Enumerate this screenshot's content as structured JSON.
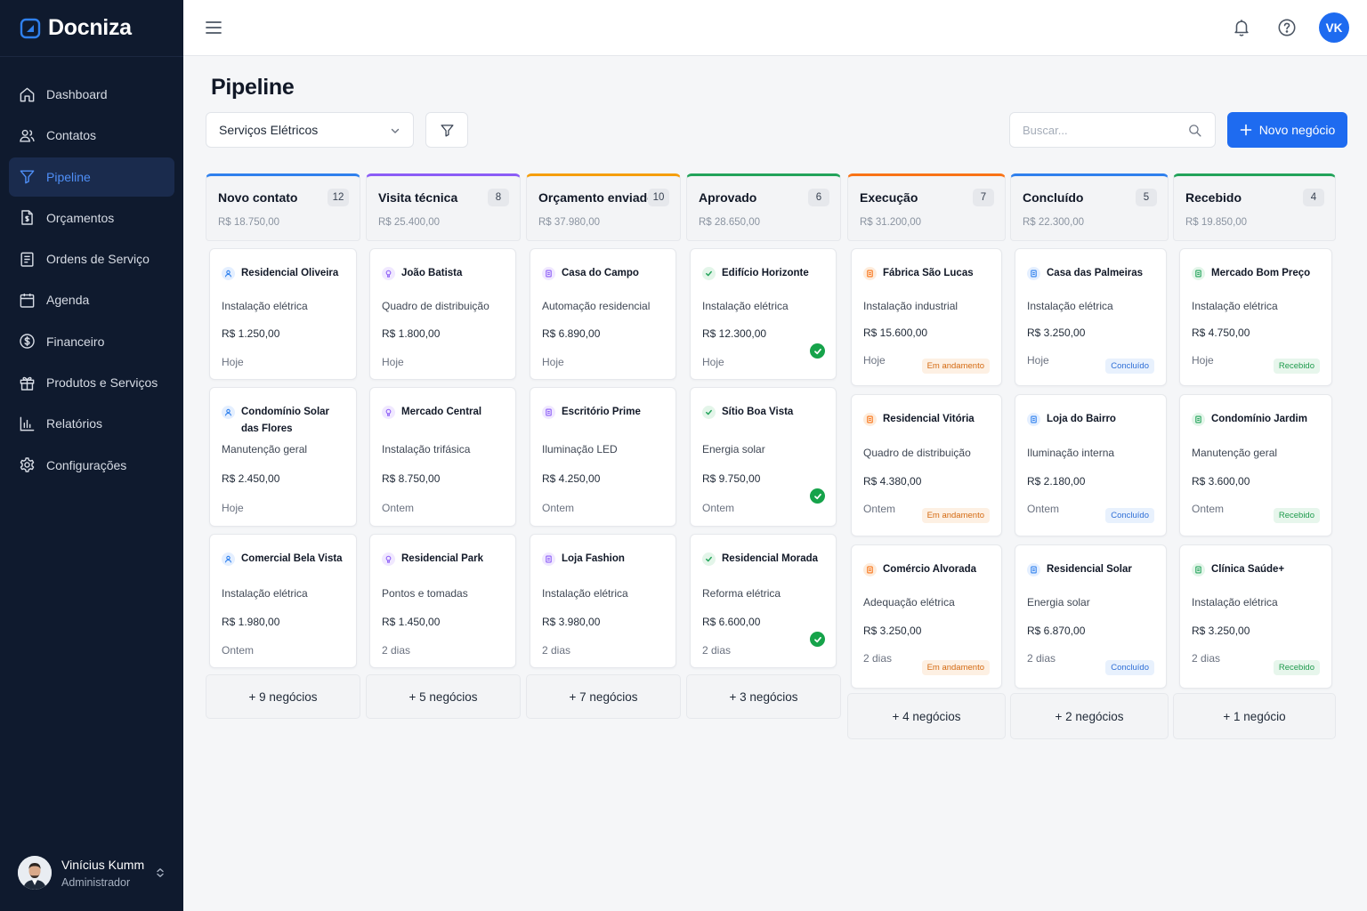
{
  "brand": {
    "name": "Docniza"
  },
  "sidebar": {
    "items": [
      {
        "label": "Dashboard",
        "icon": "home-icon"
      },
      {
        "label": "Contatos",
        "icon": "users-icon"
      },
      {
        "label": "Pipeline",
        "icon": "funnel-icon",
        "active": true
      },
      {
        "label": "Orçamentos",
        "icon": "document-icon"
      },
      {
        "label": "Ordens de Serviço",
        "icon": "clipboard-icon"
      },
      {
        "label": "Agenda",
        "icon": "calendar-icon"
      },
      {
        "label": "Financeiro",
        "icon": "dollar-icon"
      },
      {
        "label": "Produtos e Serviços",
        "icon": "box-icon"
      },
      {
        "label": "Relatórios",
        "icon": "bar-chart-icon"
      },
      {
        "label": "Configurações",
        "icon": "gear-icon"
      }
    ],
    "user": {
      "name": "Vinícius Kumm",
      "role": "Administrador"
    }
  },
  "topbar": {
    "avatar_initials": "VK"
  },
  "page": {
    "title": "Pipeline",
    "pipeline_select": "Serviços Elétricos",
    "search_placeholder": "Buscar...",
    "new_button": "Novo negócio"
  },
  "colors": {
    "accent": "#1e6bf0",
    "sidebar_bg": "#0f1a2e",
    "columns": [
      "#2f80ed",
      "#8b5cf6",
      "#f59e0b",
      "#22a35a",
      "#f97316",
      "#2f80ed",
      "#22a35a"
    ]
  },
  "columns": [
    {
      "title": "Novo contato",
      "count": "12",
      "total": "R$ 18.750,00",
      "more": "+ 9 negócios",
      "cards": [
        {
          "client": "Residencial Oliveira",
          "service": "Instalação elétrica",
          "value": "R$ 1.250,00",
          "date": "Hoje"
        },
        {
          "client": "Condomínio Solar das Flores",
          "service": "Manutenção geral",
          "value": "R$ 2.450,00",
          "date": "Hoje"
        },
        {
          "client": "Comercial Bela Vista",
          "service": "Instalação elétrica",
          "value": "R$ 1.980,00",
          "date": "Ontem"
        }
      ]
    },
    {
      "title": "Visita técnica",
      "count": "8",
      "total": "R$ 25.400,00",
      "more": "+ 5 negócios",
      "cards": [
        {
          "client": "João Batista",
          "service": "Quadro de distribuição",
          "value": "R$ 1.800,00",
          "date": "Hoje"
        },
        {
          "client": "Mercado Central",
          "service": "Instalação trifásica",
          "value": "R$ 8.750,00",
          "date": "Ontem"
        },
        {
          "client": "Residencial Park",
          "service": "Pontos e tomadas",
          "value": "R$ 1.450,00",
          "date": "2 dias"
        }
      ]
    },
    {
      "title": "Orçamento enviado",
      "count": "10",
      "total": "R$ 37.980,00",
      "more": "+ 7 negócios",
      "cards": [
        {
          "client": "Casa do Campo",
          "service": "Automação residencial",
          "value": "R$ 6.890,00",
          "date": "Hoje"
        },
        {
          "client": "Escritório Prime",
          "service": "Iluminação LED",
          "value": "R$ 4.250,00",
          "date": "Ontem"
        },
        {
          "client": "Loja Fashion",
          "service": "Instalação elétrica",
          "value": "R$ 3.980,00",
          "date": "2 dias"
        }
      ]
    },
    {
      "title": "Aprovado",
      "count": "6",
      "total": "R$ 28.650,00",
      "more": "+ 3 negócios",
      "cards": [
        {
          "client": "Edifício Horizonte",
          "service": "Instalação elétrica",
          "value": "R$ 12.300,00",
          "date": "Hoje"
        },
        {
          "client": "Sítio Boa Vista",
          "service": "Energia solar",
          "value": "R$ 9.750,00",
          "date": "Ontem"
        },
        {
          "client": "Residencial Morada",
          "service": "Reforma elétrica",
          "value": "R$ 6.600,00",
          "date": "2 dias"
        }
      ]
    },
    {
      "title": "Execução",
      "count": "7",
      "total": "R$ 31.200,00",
      "more": "+ 4 negócios",
      "cards": [
        {
          "client": "Fábrica São Lucas",
          "service": "Instalação industrial",
          "value": "R$ 15.600,00",
          "date": "Hoje",
          "status": "Em andamento"
        },
        {
          "client": "Residencial Vitória",
          "service": "Quadro de distribuição",
          "value": "R$ 4.380,00",
          "date": "Ontem",
          "status": "Em andamento"
        },
        {
          "client": "Comércio Alvorada",
          "service": "Adequação elétrica",
          "value": "R$ 3.250,00",
          "date": "2 dias",
          "status": "Em andamento"
        }
      ]
    },
    {
      "title": "Concluído",
      "count": "5",
      "total": "R$ 22.300,00",
      "more": "+ 2 negócios",
      "cards": [
        {
          "client": "Casa das Palmeiras",
          "service": "Instalação elétrica",
          "value": "R$ 3.250,00",
          "date": "Hoje",
          "status": "Concluído"
        },
        {
          "client": "Loja do Bairro",
          "service": "Iluminação interna",
          "value": "R$ 2.180,00",
          "date": "Ontem",
          "status": "Concluído"
        },
        {
          "client": "Residencial Solar",
          "service": "Energia solar",
          "value": "R$ 6.870,00",
          "date": "2 dias",
          "status": "Concluído"
        }
      ]
    },
    {
      "title": "Recebido",
      "count": "4",
      "total": "R$ 19.850,00",
      "more": "+ 1 negócio",
      "cards": [
        {
          "client": "Mercado Bom Preço",
          "service": "Instalação elétrica",
          "value": "R$ 4.750,00",
          "date": "Hoje",
          "status": "Recebido"
        },
        {
          "client": "Condomínio Jardim",
          "service": "Manutenção geral",
          "value": "R$ 3.600,00",
          "date": "Ontem",
          "status": "Recebido"
        },
        {
          "client": "Clínica Saúde+",
          "service": "Instalação elétrica",
          "value": "R$ 3.250,00",
          "date": "2 dias",
          "status": "Recebido"
        }
      ]
    }
  ]
}
